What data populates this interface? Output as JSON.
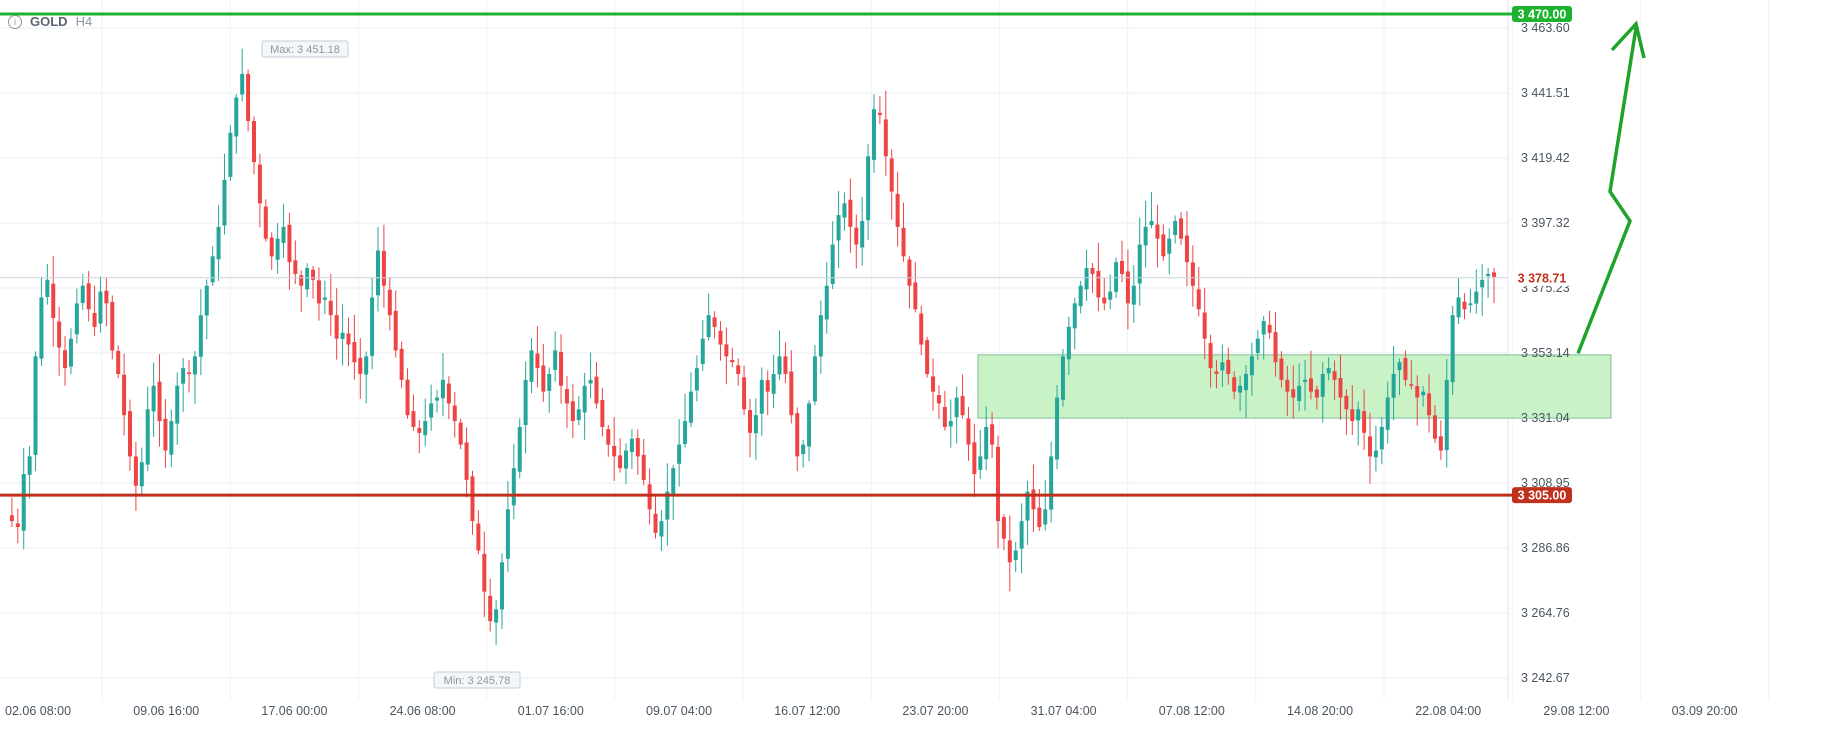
{
  "header": {
    "symbol": "GOLD",
    "timeframe": "H4",
    "info_icon": "info-icon"
  },
  "chart_data": {
    "type": "candlestick",
    "y_ticks": [
      "3 463.60",
      "3 441.51",
      "3 419.42",
      "3 397.32",
      "3 375.23",
      "3 353.14",
      "3 331.04",
      "3 308.95",
      "3 286.86",
      "3 264.76",
      "3 242.67"
    ],
    "x_ticks": [
      "02.06 08:00",
      "09.06 16:00",
      "17.06 00:00",
      "24.06 08:00",
      "01.07 16:00",
      "09.07 04:00",
      "16.07 12:00",
      "23.07 20:00",
      "31.07 04:00",
      "07.08 12:00",
      "14.08 20:00",
      "22.08 04:00",
      "29.08 12:00",
      "03.09 20:00"
    ],
    "ylim": [
      3233,
      3473
    ],
    "current_price": {
      "value": 3378.71,
      "label": "3 378.71"
    },
    "max_marker": {
      "value": 3451.18,
      "label": "Max: 3 451.18"
    },
    "min_marker": {
      "value": 3245.78,
      "label": "Min: 3 245.78"
    },
    "resistance": {
      "value": 3470.0,
      "label": "3 470.00",
      "color": "#1db32f"
    },
    "support": {
      "value": 3305.0,
      "label": "3 305.00",
      "color": "#c0301c"
    },
    "zone": {
      "low": 3331.0,
      "high": 3352.5,
      "color": "#c6f2c4"
    },
    "projection": [
      3353,
      3398,
      3408,
      3466
    ],
    "up_color": "#26a69a",
    "down_color": "#ef4444",
    "price_path": [
      3298,
      3296,
      3294,
      3312,
      3318,
      3352,
      3372,
      3378,
      3365,
      3355,
      3348,
      3358,
      3370,
      3376,
      3368,
      3362,
      3374,
      3370,
      3354,
      3346,
      3332,
      3318,
      3308,
      3316,
      3334,
      3342,
      3330,
      3320,
      3330,
      3342,
      3348,
      3346,
      3352,
      3366,
      3376,
      3386,
      3396,
      3412,
      3428,
      3440,
      3448,
      3432,
      3418,
      3404,
      3392,
      3386,
      3392,
      3396,
      3384,
      3380,
      3376,
      3382,
      3378,
      3370,
      3372,
      3366,
      3358,
      3360,
      3356,
      3350,
      3346,
      3352,
      3372,
      3388,
      3376,
      3366,
      3354,
      3344,
      3332,
      3328,
      3326,
      3330,
      3336,
      3338,
      3344,
      3336,
      3330,
      3322,
      3310,
      3296,
      3286,
      3272,
      3262,
      3266,
      3282,
      3300,
      3314,
      3328,
      3344,
      3354,
      3348,
      3340,
      3346,
      3354,
      3342,
      3336,
      3330,
      3334,
      3342,
      3344,
      3336,
      3328,
      3322,
      3318,
      3314,
      3320,
      3324,
      3318,
      3310,
      3300,
      3292,
      3296,
      3306,
      3314,
      3322,
      3330,
      3340,
      3348,
      3358,
      3366,
      3362,
      3356,
      3352,
      3350,
      3346,
      3334,
      3326,
      3332,
      3344,
      3340,
      3346,
      3352,
      3346,
      3332,
      3318,
      3322,
      3336,
      3352,
      3366,
      3376,
      3390,
      3400,
      3404,
      3396,
      3390,
      3398,
      3420,
      3436,
      3434,
      3420,
      3408,
      3396,
      3386,
      3376,
      3368,
      3356,
      3346,
      3340,
      3336,
      3328,
      3330,
      3338,
      3332,
      3322,
      3312,
      3318,
      3328,
      3322,
      3296,
      3290,
      3282,
      3286,
      3296,
      3306,
      3300,
      3294,
      3300,
      3318,
      3338,
      3352,
      3362,
      3370,
      3376,
      3382,
      3380,
      3372,
      3370,
      3374,
      3384,
      3380,
      3370,
      3376,
      3390,
      3396,
      3398,
      3392,
      3386,
      3392,
      3398,
      3392,
      3384,
      3376,
      3368,
      3358,
      3348,
      3346,
      3350,
      3346,
      3340,
      3342,
      3346,
      3352,
      3358,
      3364,
      3360,
      3350,
      3344,
      3340,
      3338,
      3342,
      3344,
      3340,
      3338,
      3346,
      3348,
      3344,
      3338,
      3334,
      3330,
      3334,
      3326,
      3318,
      3320,
      3328,
      3338,
      3346,
      3350,
      3344,
      3342,
      3338,
      3340,
      3332,
      3324,
      3320,
      3344,
      3366,
      3372,
      3368,
      3370,
      3374,
      3378,
      3380,
      3379
    ]
  }
}
